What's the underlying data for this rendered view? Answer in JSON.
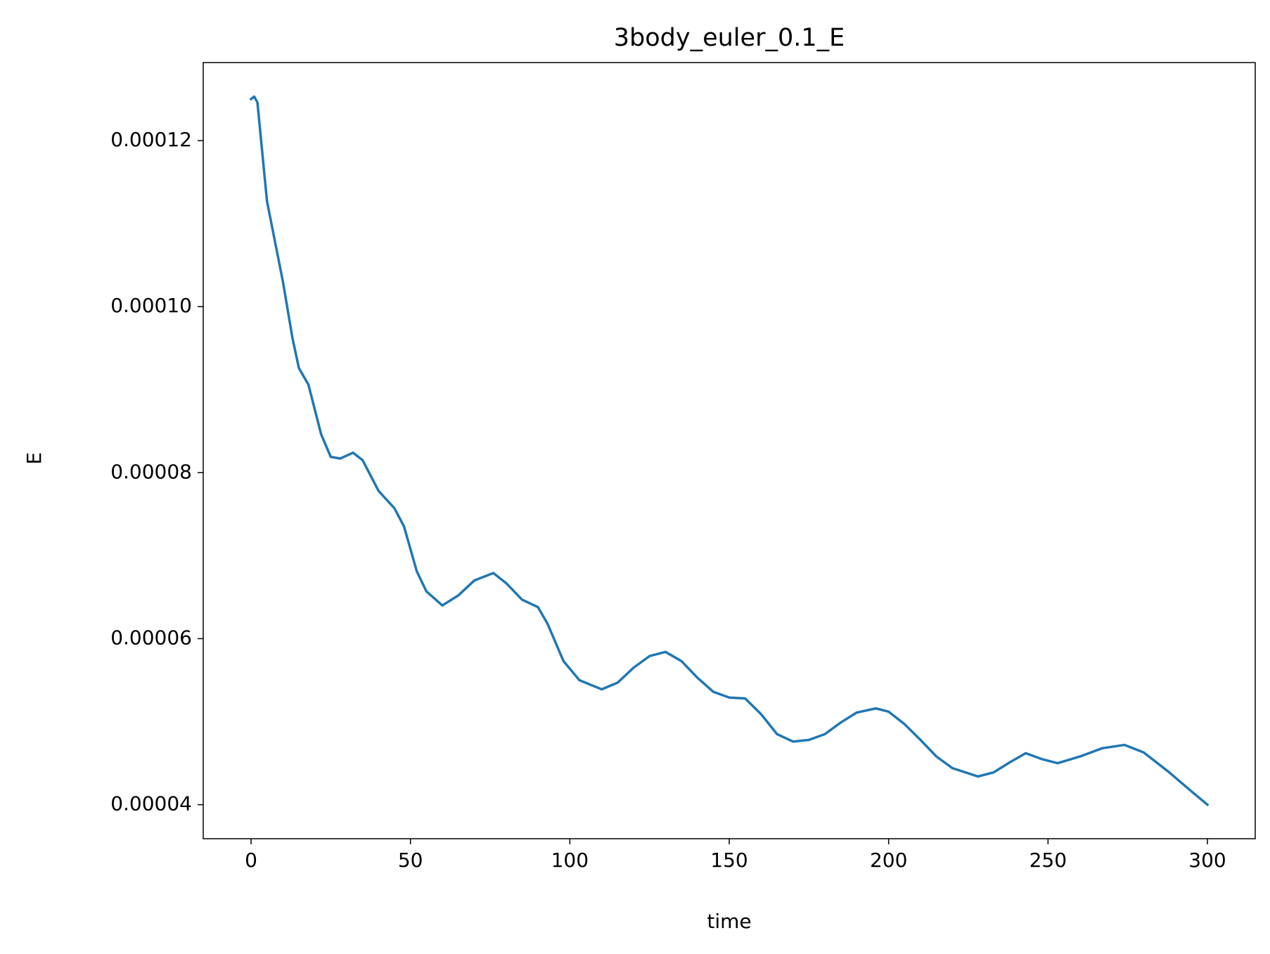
{
  "chart_data": {
    "type": "line",
    "title": "3body_euler_0.1_E",
    "x_label": "time",
    "y_label": "E",
    "x": [
      0,
      1,
      2,
      5,
      10,
      13,
      15,
      18,
      22,
      25,
      28,
      32,
      35,
      40,
      45,
      48,
      52,
      55,
      60,
      65,
      70,
      76,
      80,
      85,
      90,
      93,
      98,
      103,
      110,
      115,
      120,
      125,
      130,
      135,
      140,
      145,
      150,
      155,
      160,
      165,
      170,
      175,
      180,
      185,
      190,
      196,
      200,
      205,
      210,
      215,
      220,
      228,
      233,
      238,
      243,
      248,
      253,
      260,
      267,
      274,
      280,
      288,
      295,
      300
    ],
    "series": [
      {
        "name": "E",
        "color": "#1f77b4",
        "values": [
          0.000125,
          0.0001253,
          0.0001246,
          0.0001127,
          0.000103,
          9.62e-05,
          9.26e-05,
          9.06e-05,
          8.46e-05,
          8.19e-05,
          8.17e-05,
          8.24e-05,
          8.15e-05,
          7.78e-05,
          7.57e-05,
          7.35e-05,
          6.81e-05,
          6.57e-05,
          6.4e-05,
          6.52e-05,
          6.7e-05,
          6.79e-05,
          6.67e-05,
          6.47e-05,
          6.38e-05,
          6.18e-05,
          5.73e-05,
          5.5e-05,
          5.39e-05,
          5.47e-05,
          5.65e-05,
          5.79e-05,
          5.84e-05,
          5.73e-05,
          5.53e-05,
          5.36e-05,
          5.29e-05,
          5.28e-05,
          5.09e-05,
          4.85e-05,
          4.76e-05,
          4.78e-05,
          4.85e-05,
          4.99e-05,
          5.11e-05,
          5.16e-05,
          5.12e-05,
          4.97e-05,
          4.78e-05,
          4.58e-05,
          4.44e-05,
          4.34e-05,
          4.39e-05,
          4.51e-05,
          4.62e-05,
          4.55e-05,
          4.5e-05,
          4.58e-05,
          4.68e-05,
          4.72e-05,
          4.63e-05,
          4.39e-05,
          4.16e-05,
          4e-05
        ]
      }
    ],
    "xlim": [
      -15,
      315
    ],
    "xticks": [
      0,
      50,
      100,
      150,
      200,
      250,
      300
    ],
    "ylim": [
      3.59e-05,
      0.0001294
    ],
    "yticks": [
      4e-05,
      6e-05,
      8e-05,
      {
        "value": 0.0001,
        "label": "0.00010"
      },
      0.00012
    ]
  }
}
